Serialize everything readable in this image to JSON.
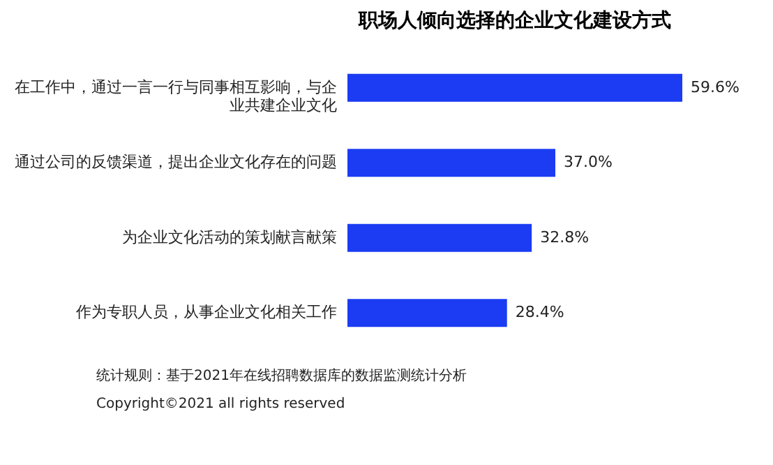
{
  "chart_data": {
    "type": "bar",
    "orientation": "horizontal",
    "title": "职场人倾向选择的企业文化建设方式",
    "categories": [
      "在工作中，通过一言一行与同事相互影响，与企业共建企业文化",
      "通过公司的反馈渠道，提出企业文化存在的问题",
      "为企业文化活动的策划献言献策",
      "作为专职人员，从事企业文化相关工作"
    ],
    "values": [
      59.6,
      37.0,
      32.8,
      28.4
    ],
    "value_labels": [
      "59.6%",
      "37.0%",
      "32.8%",
      "28.4%"
    ],
    "color": "#1b3cf2",
    "annotations": [
      "统计规则：基于2021年在线招聘数据库的数据监测统计分析",
      "Copyright©2021 all rights reserved"
    ]
  }
}
